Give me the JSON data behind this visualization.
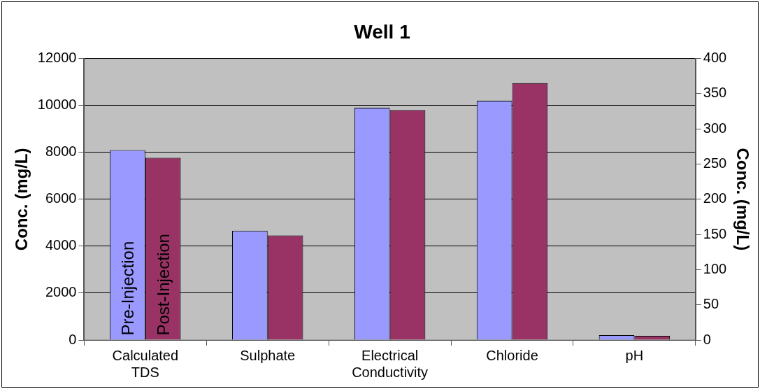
{
  "chart_data": {
    "type": "bar",
    "title": "Well 1",
    "ylabel": "Conc. (mg/L)",
    "y2label": "Conc. (mg/L)",
    "categories": [
      "Calculated TDS",
      "Sulphate",
      "Electrical Conductivity",
      "Chloride",
      "pH"
    ],
    "series": [
      {
        "name": "Pre-Injection",
        "color": "#9999ff",
        "values": [
          8100,
          4660,
          9900,
          10200,
          null
        ]
      },
      {
        "name": "Post-Injection",
        "color": "#993366",
        "values": [
          7770,
          4460,
          9800,
          10950,
          null
        ]
      },
      {
        "color": "#9999ff",
        "axis": "y2",
        "values": [
          null,
          null,
          null,
          null,
          7
        ]
      },
      {
        "color": "#993366",
        "axis": "y2",
        "values": [
          null,
          null,
          null,
          null,
          6
        ]
      }
    ],
    "ylim": [
      0,
      12000
    ],
    "yticks": [
      0,
      2000,
      4000,
      6000,
      8000,
      10000,
      12000
    ],
    "y2lim": [
      0,
      400
    ],
    "y2ticks": [
      0,
      50,
      100,
      150,
      200,
      250,
      300,
      350,
      400
    ],
    "grid": "y",
    "legend": false
  }
}
